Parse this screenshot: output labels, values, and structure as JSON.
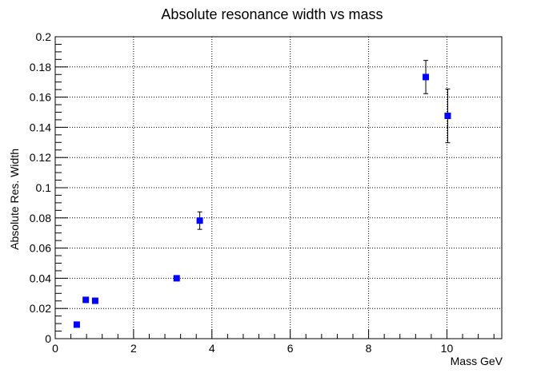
{
  "chart_data": {
    "type": "scatter",
    "title": "Absolute resonance width vs mass",
    "xlabel": "Mass GeV",
    "ylabel": "Absolute Res. Width",
    "xlim": [
      0,
      11.4
    ],
    "ylim": [
      0,
      0.2
    ],
    "x_ticks": [
      0,
      2,
      4,
      6,
      8,
      10
    ],
    "x_tick_labels": [
      "0",
      "2",
      "4",
      "6",
      "8",
      "10"
    ],
    "y_ticks": [
      0,
      0.02,
      0.04,
      0.06,
      0.08,
      0.1,
      0.12,
      0.14,
      0.16,
      0.18,
      0.2
    ],
    "y_tick_labels": [
      "0",
      "0.02",
      "0.04",
      "0.06",
      "0.08",
      "0.1",
      "0.12",
      "0.14",
      "0.16",
      "0.18",
      "0.2"
    ],
    "grid": true,
    "marker_color": "#0000ff",
    "points": [
      {
        "x": 0.55,
        "y": 0.0093,
        "yerr": 0.0
      },
      {
        "x": 0.78,
        "y": 0.0257,
        "yerr": 0.0
      },
      {
        "x": 1.02,
        "y": 0.0251,
        "yerr": 0.0
      },
      {
        "x": 3.1,
        "y": 0.04,
        "yerr": 0.0011
      },
      {
        "x": 3.69,
        "y": 0.0782,
        "yerr": 0.0058
      },
      {
        "x": 9.46,
        "y": 0.1733,
        "yerr": 0.011
      },
      {
        "x": 10.02,
        "y": 0.1476,
        "yerr": 0.0178
      }
    ]
  }
}
